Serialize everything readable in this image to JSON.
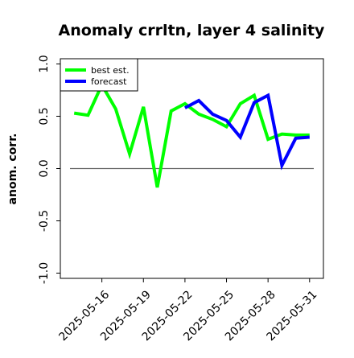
{
  "chart_data": {
    "type": "line",
    "title": "Anomaly crrltn, layer 4 salinity",
    "xlabel": "",
    "ylabel": "anom. corr.",
    "ylim": [
      -1.0,
      1.0
    ],
    "yticks": [
      -1.0,
      -0.5,
      0.0,
      0.5,
      1.0
    ],
    "ytick_labels": [
      "-1.0",
      "-0.5",
      "0.0",
      "0.5",
      "1.0"
    ],
    "xlim": [
      "2025-05-13",
      "2025-06-01"
    ],
    "xtick_labels": [
      "2025-05-16",
      "2025-05-19",
      "2025-05-22",
      "2025-05-25",
      "2025-05-28",
      "2025-05-31"
    ],
    "highlight_tick": "2025-05-22",
    "highlight_color": "#228b22",
    "zero_line": 0.0,
    "grid": false,
    "legend_position": "top-left",
    "series": [
      {
        "name": "best est.",
        "color": "#00ff00",
        "x": [
          "2025-05-14",
          "2025-05-15",
          "2025-05-16",
          "2025-05-17",
          "2025-05-18",
          "2025-05-19",
          "2025-05-20",
          "2025-05-21",
          "2025-05-22",
          "2025-05-23",
          "2025-05-24",
          "2025-05-25",
          "2025-05-26",
          "2025-05-27",
          "2025-05-28",
          "2025-05-29",
          "2025-05-30",
          "2025-05-31"
        ],
        "values": [
          0.53,
          0.51,
          0.8,
          0.57,
          0.14,
          0.59,
          -0.18,
          0.55,
          0.62,
          0.52,
          0.47,
          0.4,
          0.62,
          0.7,
          0.28,
          0.33,
          0.32,
          0.32
        ]
      },
      {
        "name": "forecast",
        "color": "#0000ff",
        "x": [
          "2025-05-22",
          "2025-05-23",
          "2025-05-24",
          "2025-05-25",
          "2025-05-26",
          "2025-05-27",
          "2025-05-28",
          "2025-05-29",
          "2025-05-30",
          "2025-05-31"
        ],
        "values": [
          0.58,
          0.65,
          0.52,
          0.46,
          0.3,
          0.63,
          0.7,
          0.03,
          0.29,
          0.3
        ]
      }
    ]
  }
}
